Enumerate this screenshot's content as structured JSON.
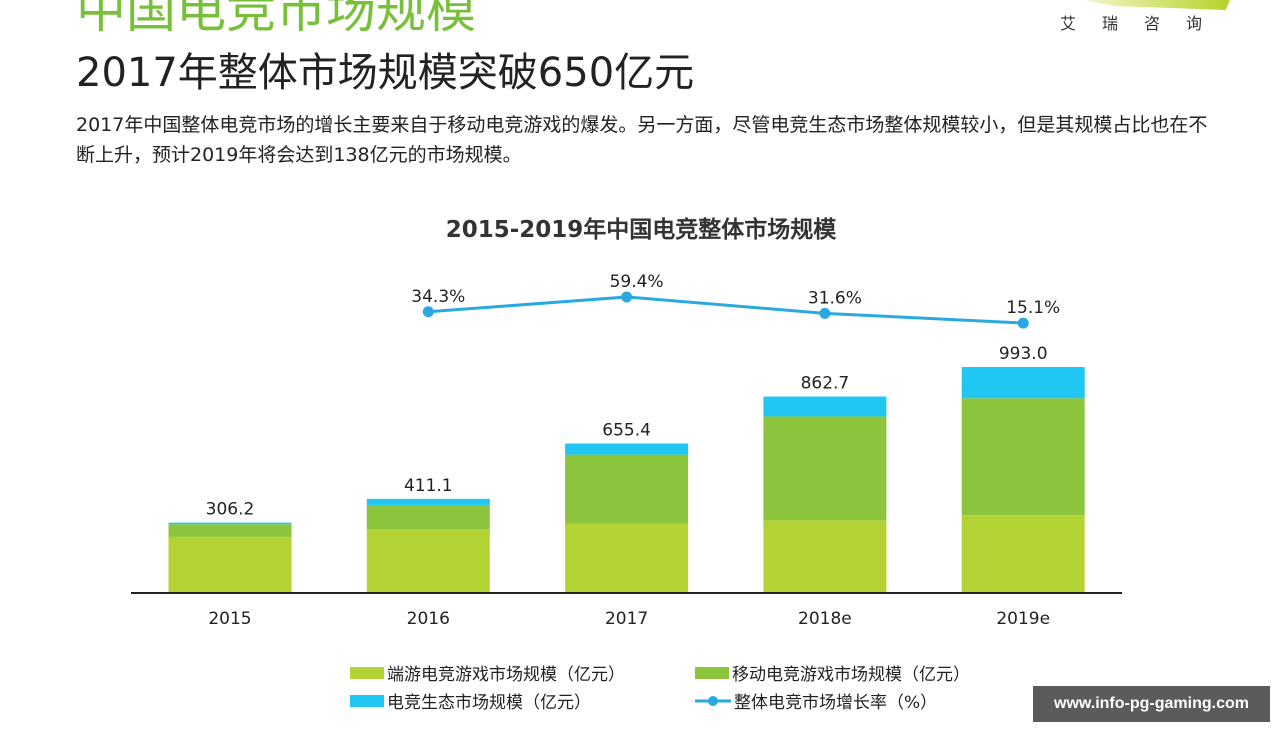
{
  "header": {
    "section_title": "中国电竞市场规模",
    "logo_text": "艾瑞咨询",
    "headline": "2017年整体市场规模突破650亿元",
    "description": "2017年中国整体电竞市场的增长主要来自于移动电竞游戏的爆发。另一方面，尽管电竞生态市场整体规模较小，但是其规模占比也在不断上升，预计2019年将会达到138亿元的市场规模。"
  },
  "watermark": "www.info-pg-gaming.com",
  "chart_data": {
    "type": "bar",
    "stacked": true,
    "title": "2015-2019年中国电竞整体市场规模",
    "categories": [
      "2015",
      "2016",
      "2017",
      "2018e",
      "2019e"
    ],
    "series": [
      {
        "name": "端游电竞游戏市场规模（亿元）",
        "color": "#b3d334",
        "values": [
          243.0,
          277.8,
          301.2,
          316.0,
          339.0
        ]
      },
      {
        "name": "移动电竞游戏市场规模（亿元）",
        "color": "#8cc43e",
        "values": [
          56.2,
          106.5,
          305.1,
          458.7,
          516.0
        ]
      },
      {
        "name": "电竞生态市场规模（亿元）",
        "color": "#1fc7f2",
        "values": [
          7.0,
          26.8,
          49.1,
          88.0,
          138.0
        ]
      }
    ],
    "totals": [
      306.2,
      411.1,
      655.4,
      862.7,
      993.0
    ],
    "total_labels": [
      "306.2",
      "411.1",
      "655.4",
      "862.7",
      "993.0"
    ],
    "line_series": {
      "name": "整体电竞市场增长率（%）",
      "color": "#2aa9e0",
      "categories": [
        "2016",
        "2017",
        "2018e",
        "2019e"
      ],
      "values": [
        34.3,
        59.4,
        31.6,
        15.1
      ],
      "labels": [
        "34.3%",
        "59.4%",
        "31.6%",
        "15.1%"
      ]
    },
    "ylim": [
      0,
      1000
    ],
    "grid": false,
    "legend_position": "bottom"
  }
}
